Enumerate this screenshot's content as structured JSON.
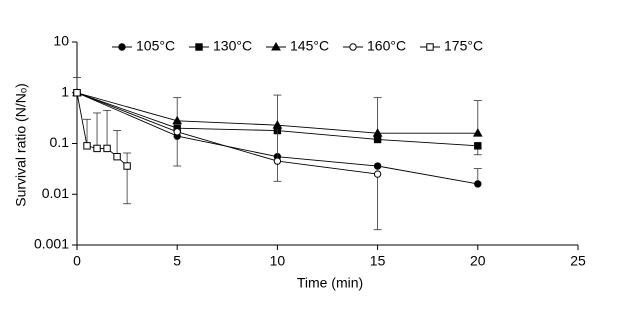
{
  "chart_data": {
    "type": "line",
    "xlabel": "Time (min)",
    "ylabel": "Survival ratio (N/Nₒ)",
    "log_y": true,
    "xlim": [
      0,
      25
    ],
    "xticks": [
      0,
      5,
      10,
      15,
      20,
      25
    ],
    "ylim": [
      0.001,
      10
    ],
    "yticks": [
      0.001,
      0.01,
      0.1,
      1,
      10
    ],
    "legend": "top",
    "series": [
      {
        "name": "105°C",
        "color": "#000000",
        "marker": "circle",
        "x": [
          0,
          5,
          10,
          15,
          20
        ],
        "values": [
          1,
          0.14,
          0.055,
          0.036,
          0.016
        ],
        "err_low": [
          null,
          0.036,
          null,
          null,
          null
        ],
        "err_high": [
          2,
          null,
          null,
          null,
          0.032
        ]
      },
      {
        "name": "130°C",
        "color": "#000000",
        "marker": "square",
        "x": [
          0,
          5,
          10,
          15,
          20
        ],
        "values": [
          1,
          0.2,
          0.18,
          0.12,
          0.09
        ],
        "err_low": [
          null,
          null,
          null,
          null,
          0.06
        ],
        "err_high": [
          null,
          null,
          null,
          null,
          null
        ]
      },
      {
        "name": "145°C",
        "color": "#000000",
        "marker": "triangle",
        "x": [
          0,
          5,
          10,
          15,
          20
        ],
        "values": [
          1,
          0.28,
          0.23,
          0.16,
          0.16
        ],
        "err_low": [
          null,
          null,
          0.018,
          null,
          null
        ],
        "err_high": [
          null,
          0.8,
          0.9,
          0.8,
          0.7
        ]
      },
      {
        "name": "160°C",
        "color": "#000000",
        "marker": "circle-open",
        "x": [
          0,
          5,
          10,
          15
        ],
        "values": [
          1,
          0.17,
          0.045,
          0.025
        ],
        "err_low": [
          null,
          null,
          null,
          0.002
        ],
        "err_high": [
          null,
          null,
          null,
          null
        ]
      },
      {
        "name": "175°C",
        "color": "#000000",
        "marker": "square-open",
        "x": [
          0,
          0.5,
          1,
          1.5,
          2,
          2.5
        ],
        "values": [
          1,
          0.09,
          0.08,
          0.08,
          0.055,
          0.036
        ],
        "err_low": [
          null,
          null,
          null,
          null,
          null,
          0.0065
        ],
        "err_high": [
          null,
          0.3,
          0.4,
          0.45,
          0.18,
          0.065
        ]
      }
    ]
  }
}
